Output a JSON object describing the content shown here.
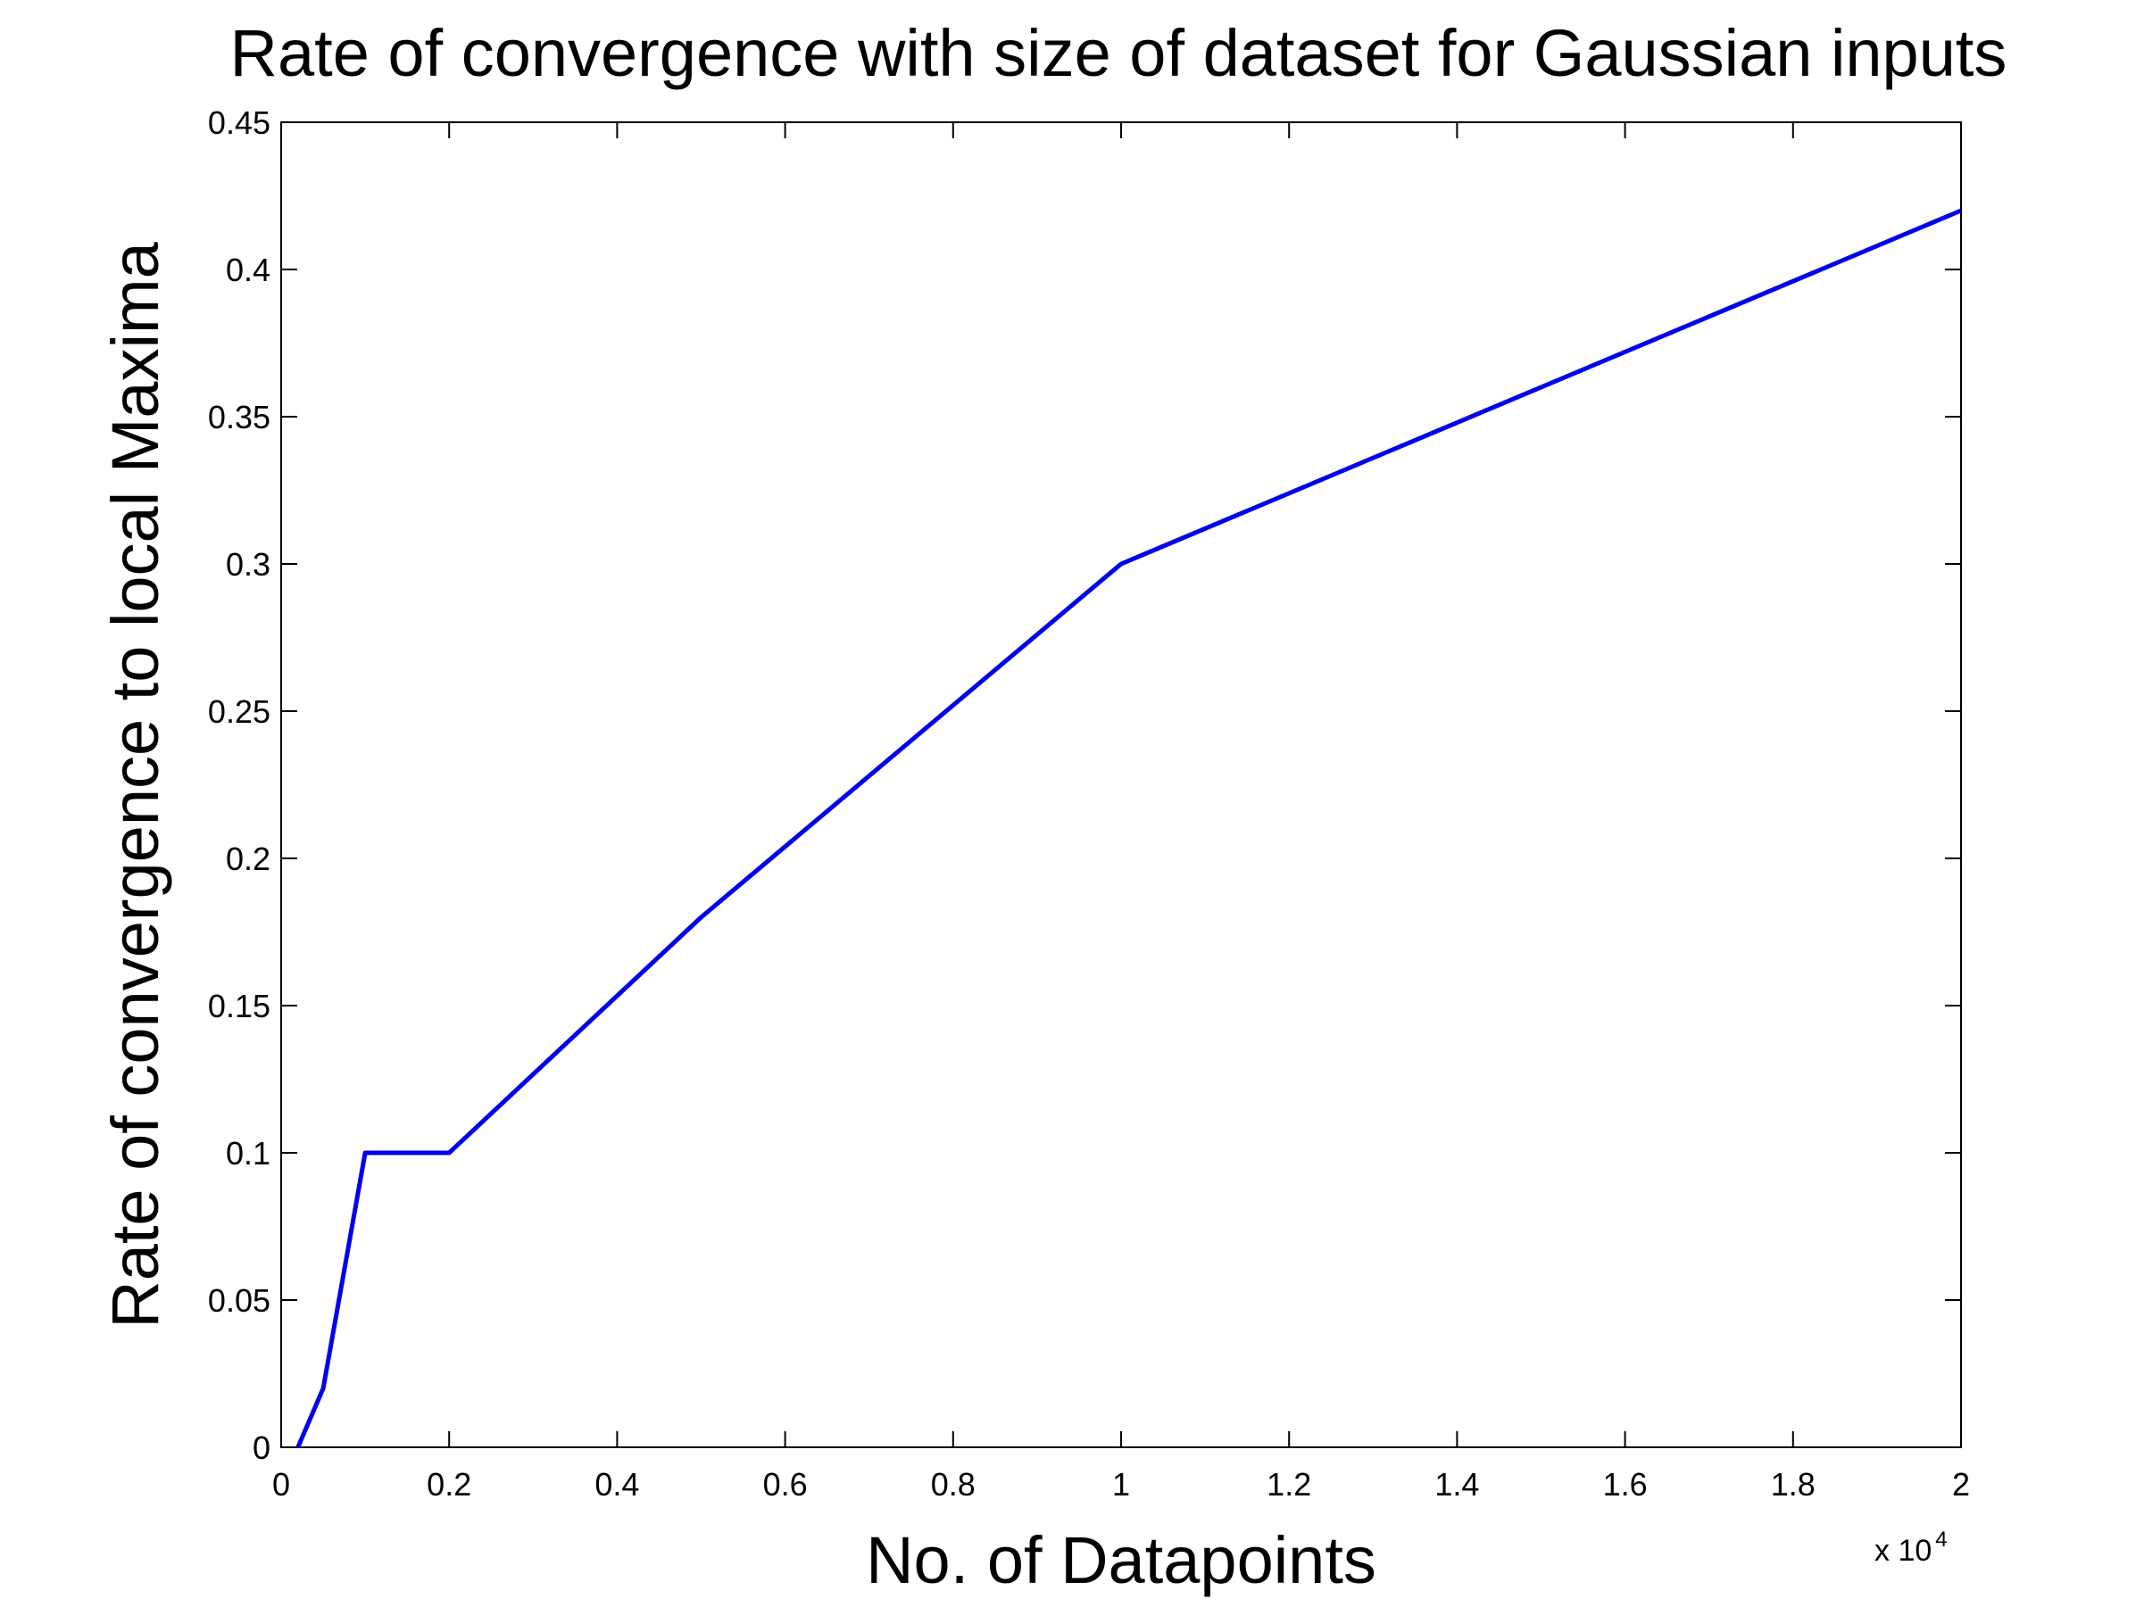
{
  "chart_data": {
    "type": "line",
    "title": "Rate of convergence with size of dataset for Gaussian inputs",
    "xlabel": "No. of Datapoints",
    "ylabel": "Rate of convergence to local Maxima",
    "x_multiplier_label": "x 10",
    "x_multiplier_exponent": "4",
    "xlim": [
      0,
      2
    ],
    "ylim": [
      0,
      0.45
    ],
    "x_ticks": [
      "0",
      "0.2",
      "0.4",
      "0.6",
      "0.8",
      "1",
      "1.2",
      "1.4",
      "1.6",
      "1.8",
      "2"
    ],
    "y_ticks": [
      "0",
      "0.05",
      "0.1",
      "0.15",
      "0.2",
      "0.25",
      "0.3",
      "0.35",
      "0.4",
      "0.45"
    ],
    "grid": false,
    "series": [
      {
        "color": "#0000ee",
        "x": [
          0.02,
          0.05,
          0.1,
          0.2,
          0.5,
          1.0,
          2.0
        ],
        "y": [
          0.0,
          0.02,
          0.1,
          0.1,
          0.18,
          0.3,
          0.42
        ]
      }
    ]
  }
}
